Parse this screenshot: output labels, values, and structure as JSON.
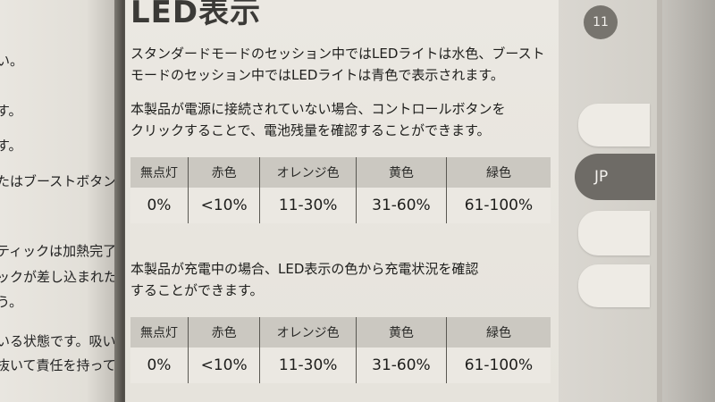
{
  "left_page": {
    "lines": [
      "い。",
      "す。",
      "す。",
      "たはブーストボタン",
      "ティックは加熱完了、",
      "ックが差し込まれた",
      "う。",
      "いる状態です。吸い",
      "抜いて責任を持って"
    ]
  },
  "main": {
    "title": "LED表示",
    "para1": [
      "スタンダードモードのセッション中ではLEDライトは水色、ブースト",
      "モードのセッション中ではLEDライトは青色で表示されます。"
    ],
    "para2": [
      "本製品が電源に接続されていない場合、コントロールボタンを",
      "クリックすることで、電池残量を確認することができます。"
    ],
    "table1": {
      "headers": [
        "無点灯",
        "赤色",
        "オレンジ色",
        "黄色",
        "緑色"
      ],
      "values": [
        "0%",
        "<10%",
        "11-30%",
        "31-60%",
        "61-100%"
      ]
    },
    "para3": [
      "本製品が充電中の場合、LED表示の色から充電状況を確認",
      "することができます。"
    ],
    "table2": {
      "headers": [
        "無点灯",
        "赤色",
        "オレンジ色",
        "黄色",
        "緑色"
      ],
      "values": [
        "0%",
        "<10%",
        "11-30%",
        "31-60%",
        "61-100%"
      ]
    }
  },
  "tabs": {
    "page_number": "11",
    "language": "JP"
  },
  "colors": {
    "page": "#ebe8e2",
    "table_header": "#cbc8c1",
    "tab_active": "#6e6b66"
  }
}
